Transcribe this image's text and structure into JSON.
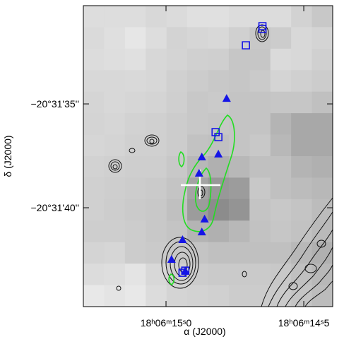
{
  "chart_data": {
    "type": "scatter",
    "xlabel": "α (J2000)",
    "ylabel": "δ (J2000)",
    "xlim": [
      15.3,
      14.395
    ],
    "ylim": [
      44.76,
      30.27
    ],
    "xticks": [
      {
        "value": 15.0,
        "label": "18ʰ06ᵐ15ˢ0"
      },
      {
        "value": 14.5,
        "label": "18ʰ06ᵐ14ˢ5"
      }
    ],
    "yticks": [
      {
        "value": 35,
        "label": "−20°31'35''"
      },
      {
        "value": 40,
        "label": "−20°31'40''"
      }
    ],
    "series": [
      {
        "marker": "triangle",
        "color": "#1515e6",
        "x": [
          14.78,
          14.87,
          14.81,
          14.88,
          14.86,
          14.87,
          14.94,
          14.98,
          14.93
        ],
        "values": [
          34.73,
          37.55,
          37.41,
          38.33,
          40.54,
          41.16,
          41.53,
          42.48,
          43.03
        ]
      },
      {
        "marker": "square",
        "color": "#1515e6",
        "x": [
          14.65,
          14.65,
          14.71,
          14.82,
          14.81,
          14.93,
          14.94
        ],
        "values": [
          31.26,
          31.39,
          32.18,
          36.36,
          36.6,
          43.03,
          43.13
        ]
      }
    ]
  }
}
